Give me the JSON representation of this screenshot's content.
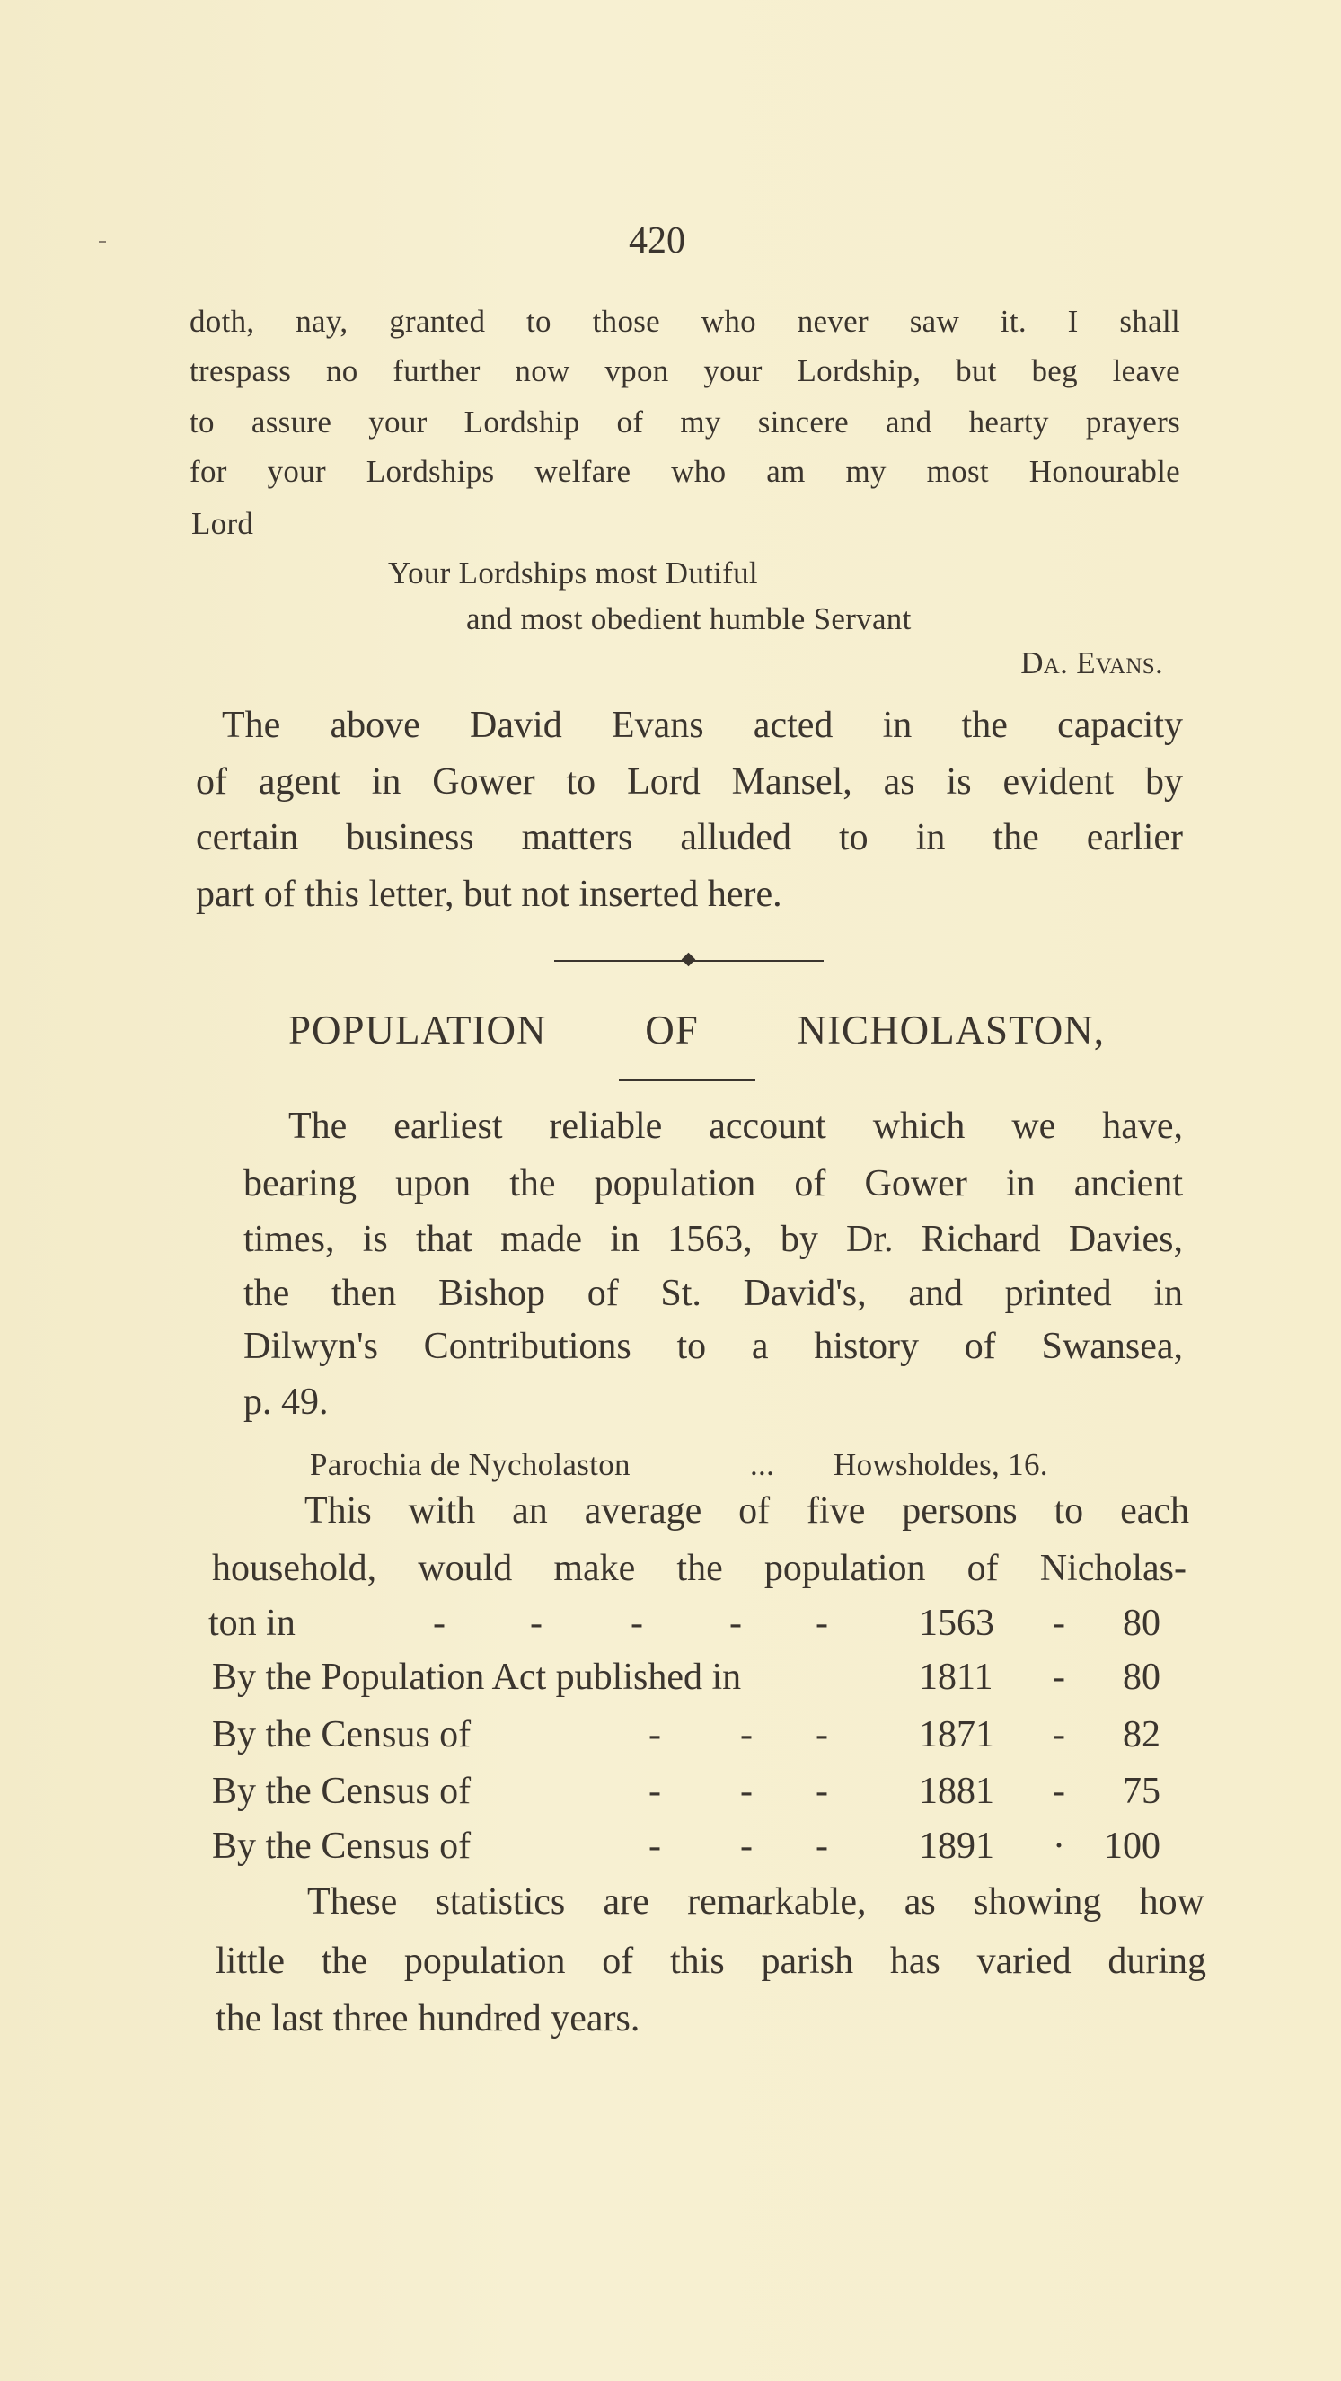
{
  "page_number": "420",
  "letter": {
    "lines": [
      "doth, nay, granted to those who never saw it. I shall",
      "trespass no further now vpon your Lordship, but beg leave",
      "to assure your Lordship of my sincere and hearty prayers",
      "for your Lordships welfare who am my most Honourable",
      "Lord"
    ],
    "closing": [
      "Your Lordships most Dutiful",
      "and most obedient humble Servant"
    ],
    "signature": "Da. Evans."
  },
  "note_paragraph": [
    "The above David Evans acted in the capacity",
    "of agent in Gower to Lord Mansel, as is evident by",
    "certain business matters alluded to in the earlier",
    "part of this letter, but not inserted here."
  ],
  "section": {
    "heading": "POPULATION OF NICHOLASTON,",
    "intro": [
      "The earliest reliable account which we have,",
      "bearing upon the population of Gower in ancient",
      "times, is that made in 1563, by Dr. Richard Davies,",
      "the then Bishop of St. David's, and printed in",
      "Dilwyn's Contributions to a history of Swansea,",
      "p. 49."
    ],
    "quote": {
      "left": "Parochia de Nycholaston",
      "dots": "...",
      "right": "Howsholdes, 16."
    },
    "avg_lines": [
      "This with an average of five persons to each",
      "household, would make the population of Nicholas-"
    ],
    "table": [
      {
        "label": "ton in",
        "year": "1563",
        "sep": "-",
        "value": "80"
      },
      {
        "label": "By the Population Act published in",
        "year": "1811",
        "sep": "-",
        "value": "80"
      },
      {
        "label": "By the Census of",
        "year": "1871",
        "sep": "-",
        "value": "82"
      },
      {
        "label": "By the Census of",
        "year": "1881",
        "sep": "-",
        "value": "75"
      },
      {
        "label": "By the Census of",
        "year": "1891",
        "sep": "·",
        "value": "100"
      }
    ],
    "leader": "-",
    "conclusion": [
      "These statistics are remarkable, as showing how",
      "little the population of this parish has varied during",
      "the last three hundred years."
    ]
  }
}
